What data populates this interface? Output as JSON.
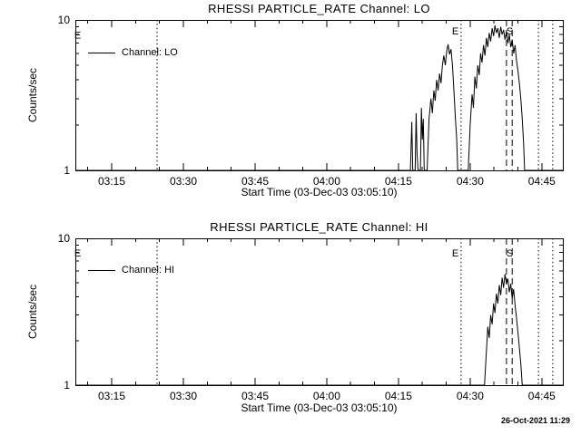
{
  "meta": {
    "timestamp": "26-Oct-2021 11:29",
    "fg_color": "#000000",
    "bg_color": "#ffffff"
  },
  "chart_data": [
    {
      "type": "line",
      "title": "RHESSI PARTICLE_RATE Channel: LO",
      "xlabel": "Start Time (03-Dec-03 03:05:10)",
      "ylabel": "Counts/sec",
      "legend": "Channel: LO",
      "legend_position": "upper left inside",
      "grid": false,
      "yscale": "log",
      "x_unit": "minutes after 03:00 on 03-Dec-03",
      "xlim": [
        7.4,
        109.4
      ],
      "ylim": [
        1,
        10
      ],
      "x_minor_step": 5,
      "x_ticks": [
        {
          "t": 15,
          "label": "03:15"
        },
        {
          "t": 30,
          "label": "03:30"
        },
        {
          "t": 45,
          "label": "03:45"
        },
        {
          "t": 60,
          "label": "04:00"
        },
        {
          "t": 75,
          "label": "04:15"
        },
        {
          "t": 90,
          "label": "04:30"
        },
        {
          "t": 105,
          "label": "04:45"
        }
      ],
      "y_ticks": [
        {
          "v": 1,
          "label": "1"
        },
        {
          "v": 10,
          "label": "10"
        }
      ],
      "y_minor": [
        2,
        3,
        4,
        5,
        6,
        7,
        8,
        9
      ],
      "vlines": [
        {
          "t": 24.5,
          "style": "dotted"
        },
        {
          "t": 88.1,
          "style": "dotted"
        },
        {
          "t": 104.3,
          "style": "dotted"
        },
        {
          "t": 107.3,
          "style": "dotted"
        },
        {
          "t": 97.6,
          "style": "dashed"
        },
        {
          "t": 98.8,
          "style": "dashed"
        }
      ],
      "annotations": [
        {
          "t": 7.9,
          "v": 7.5,
          "text": "E"
        },
        {
          "t": 86.9,
          "v": 8.0,
          "text": "E"
        },
        {
          "t": 98.3,
          "v": 8.0,
          "text": "S"
        }
      ],
      "points": [
        [
          7.4,
          1
        ],
        [
          77.5,
          1
        ],
        [
          77.8,
          2.1
        ],
        [
          78.0,
          1
        ],
        [
          78.5,
          1
        ],
        [
          78.7,
          2.4
        ],
        [
          78.9,
          1.3
        ],
        [
          79.1,
          1
        ],
        [
          79.6,
          1
        ],
        [
          79.8,
          2.6
        ],
        [
          80.0,
          1.6
        ],
        [
          80.2,
          2.2
        ],
        [
          80.4,
          1
        ],
        [
          81.0,
          1
        ],
        [
          81.4,
          2.2
        ],
        [
          81.8,
          3.0
        ],
        [
          82.1,
          2.4
        ],
        [
          82.4,
          3.4
        ],
        [
          82.7,
          2.9
        ],
        [
          83.0,
          4.0
        ],
        [
          83.3,
          3.4
        ],
        [
          83.6,
          4.4
        ],
        [
          83.9,
          3.8
        ],
        [
          84.2,
          5.0
        ],
        [
          84.5,
          5.8
        ],
        [
          84.8,
          5.0
        ],
        [
          85.1,
          6.2
        ],
        [
          85.4,
          6.9
        ],
        [
          85.7,
          5.9
        ],
        [
          86.0,
          6.4
        ],
        [
          86.3,
          5.0
        ],
        [
          86.6,
          3.4
        ],
        [
          86.9,
          2.3
        ],
        [
          87.2,
          1.6
        ],
        [
          87.4,
          1
        ],
        [
          89.6,
          1
        ],
        [
          90.0,
          2.0
        ],
        [
          90.4,
          3.2
        ],
        [
          90.7,
          2.6
        ],
        [
          91.0,
          4.2
        ],
        [
          91.3,
          3.5
        ],
        [
          91.6,
          5.0
        ],
        [
          91.9,
          4.3
        ],
        [
          92.2,
          6.0
        ],
        [
          92.5,
          5.2
        ],
        [
          92.8,
          6.8
        ],
        [
          93.1,
          5.8
        ],
        [
          93.4,
          7.6
        ],
        [
          93.7,
          6.6
        ],
        [
          94.0,
          8.2
        ],
        [
          94.3,
          7.2
        ],
        [
          94.6,
          8.8
        ],
        [
          94.9,
          7.8
        ],
        [
          95.2,
          9.2
        ],
        [
          95.5,
          8.2
        ],
        [
          95.8,
          8.8
        ],
        [
          96.1,
          7.6
        ],
        [
          96.4,
          9.0
        ],
        [
          96.7,
          8.0
        ],
        [
          97.0,
          8.6
        ],
        [
          97.3,
          7.4
        ],
        [
          97.6,
          8.4
        ],
        [
          97.9,
          7.0
        ],
        [
          98.2,
          8.0
        ],
        [
          98.5,
          6.6
        ],
        [
          98.8,
          7.4
        ],
        [
          99.1,
          6.0
        ],
        [
          99.4,
          6.8
        ],
        [
          99.7,
          5.4
        ],
        [
          100.0,
          4.6
        ],
        [
          100.3,
          3.8
        ],
        [
          100.6,
          3.0
        ],
        [
          100.9,
          2.2
        ],
        [
          101.2,
          1.5
        ],
        [
          101.4,
          1
        ],
        [
          109.4,
          1
        ]
      ]
    },
    {
      "type": "line",
      "title": "RHESSI PARTICLE_RATE Channel: HI",
      "xlabel": "Start Time (03-Dec-03 03:05:10)",
      "ylabel": "Counts/sec",
      "legend": "Channel: HI",
      "legend_position": "upper left inside",
      "grid": false,
      "yscale": "log",
      "x_unit": "minutes after 03:00 on 03-Dec-03",
      "xlim": [
        7.4,
        109.4
      ],
      "ylim": [
        1,
        10
      ],
      "x_minor_step": 5,
      "x_ticks": [
        {
          "t": 15,
          "label": "03:15"
        },
        {
          "t": 30,
          "label": "03:30"
        },
        {
          "t": 45,
          "label": "03:45"
        },
        {
          "t": 60,
          "label": "04:00"
        },
        {
          "t": 75,
          "label": "04:15"
        },
        {
          "t": 90,
          "label": "04:30"
        },
        {
          "t": 105,
          "label": "04:45"
        }
      ],
      "y_ticks": [
        {
          "v": 1,
          "label": "1"
        },
        {
          "v": 10,
          "label": "10"
        }
      ],
      "y_minor": [
        2,
        3,
        4,
        5,
        6,
        7,
        8,
        9
      ],
      "vlines": [
        {
          "t": 24.5,
          "style": "dotted"
        },
        {
          "t": 88.1,
          "style": "dotted"
        },
        {
          "t": 104.3,
          "style": "dotted"
        },
        {
          "t": 107.3,
          "style": "dotted"
        },
        {
          "t": 97.6,
          "style": "dashed"
        },
        {
          "t": 98.8,
          "style": "dashed"
        }
      ],
      "annotations": [
        {
          "t": 7.9,
          "v": 7.5,
          "text": "E"
        },
        {
          "t": 86.9,
          "v": 7.5,
          "text": "E"
        },
        {
          "t": 98.3,
          "v": 7.5,
          "text": "S"
        }
      ],
      "points": [
        [
          7.4,
          1
        ],
        [
          93.0,
          1
        ],
        [
          93.4,
          1.7
        ],
        [
          93.7,
          2.5
        ],
        [
          94.0,
          2.1
        ],
        [
          94.3,
          3.0
        ],
        [
          94.6,
          2.6
        ],
        [
          94.9,
          3.6
        ],
        [
          95.2,
          3.1
        ],
        [
          95.5,
          4.2
        ],
        [
          95.8,
          3.6
        ],
        [
          96.1,
          4.8
        ],
        [
          96.4,
          4.1
        ],
        [
          96.7,
          5.4
        ],
        [
          97.0,
          4.6
        ],
        [
          97.3,
          5.7
        ],
        [
          97.6,
          4.9
        ],
        [
          97.9,
          5.3
        ],
        [
          98.2,
          4.3
        ],
        [
          98.5,
          4.9
        ],
        [
          98.8,
          3.9
        ],
        [
          99.1,
          4.5
        ],
        [
          99.4,
          3.5
        ],
        [
          99.7,
          2.9
        ],
        [
          100.0,
          2.3
        ],
        [
          100.3,
          1.8
        ],
        [
          100.6,
          1.4
        ],
        [
          100.9,
          1
        ],
        [
          109.4,
          1
        ]
      ]
    }
  ]
}
